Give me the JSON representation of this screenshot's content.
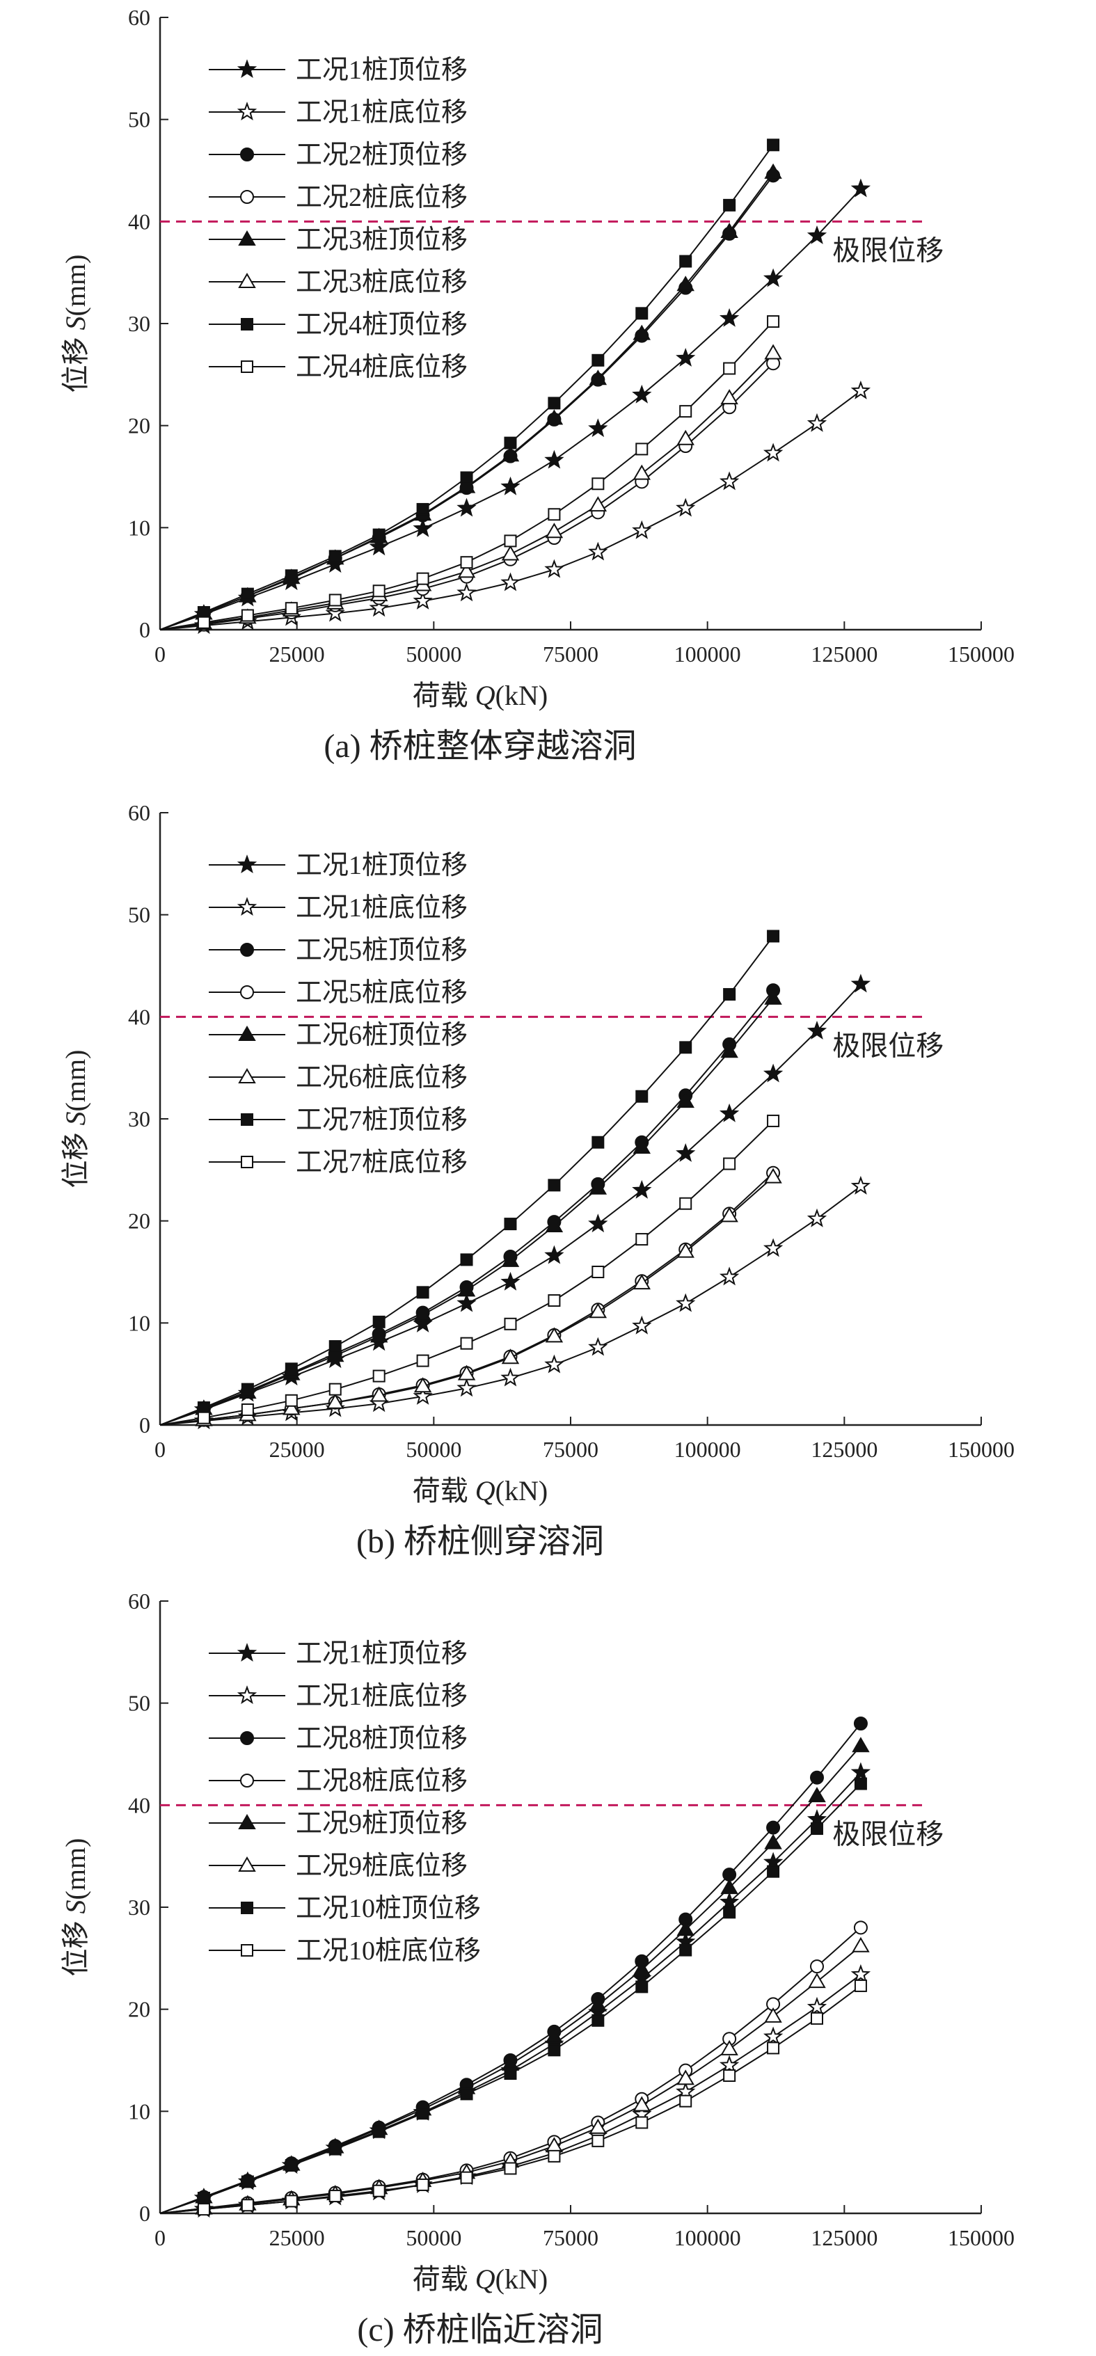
{
  "chart_data": [
    {
      "type": "line",
      "caption": "(a) 桥桩整体穿越溶洞",
      "xlabel_prefix": "荷载 ",
      "xlabel_var": "Q",
      "xlabel_suffix": "(kN)",
      "ylabel_prefix": "位移 ",
      "ylabel_var": "S",
      "ylabel_suffix": "(mm)",
      "xlim": [
        0,
        150000
      ],
      "ylim": [
        0,
        60
      ],
      "xticks": [
        "0",
        "25000",
        "50000",
        "75000",
        "100000",
        "125000",
        "150000"
      ],
      "yticks": [
        "0",
        "10",
        "20",
        "30",
        "40",
        "50",
        "60"
      ],
      "limit_line": {
        "y": 40,
        "label": "极限位移",
        "color": "#c2185b"
      },
      "series": [
        {
          "name": "工况1桩顶位移",
          "marker": "star-filled",
          "x": [
            0,
            8000,
            16000,
            24000,
            32000,
            40000,
            48000,
            56000,
            64000,
            72000,
            80000,
            88000,
            96000,
            104000,
            112000,
            120000,
            128000
          ],
          "y": [
            0,
            1.5,
            3.1,
            4.7,
            6.4,
            8.1,
            9.9,
            11.9,
            14.0,
            16.6,
            19.7,
            23.0,
            26.6,
            30.5,
            34.4,
            38.6,
            43.2
          ]
        },
        {
          "name": "工况1桩底位移",
          "marker": "star-open",
          "x": [
            0,
            8000,
            16000,
            24000,
            32000,
            40000,
            48000,
            56000,
            64000,
            72000,
            80000,
            88000,
            96000,
            104000,
            112000,
            120000,
            128000
          ],
          "y": [
            0,
            0.4,
            0.8,
            1.2,
            1.6,
            2.1,
            2.8,
            3.6,
            4.6,
            5.9,
            7.6,
            9.7,
            11.9,
            14.5,
            17.3,
            20.2,
            23.4
          ]
        },
        {
          "name": "工况2桩顶位移",
          "marker": "circle-filled",
          "x": [
            0,
            8000,
            16000,
            24000,
            32000,
            40000,
            48000,
            56000,
            64000,
            72000,
            80000,
            88000,
            96000,
            104000,
            112000
          ],
          "y": [
            0,
            1.6,
            3.3,
            5.0,
            7.0,
            9.0,
            11.2,
            13.9,
            17.0,
            20.6,
            24.5,
            28.8,
            33.5,
            38.8,
            44.5
          ]
        },
        {
          "name": "工况2桩底位移",
          "marker": "circle-open",
          "x": [
            0,
            8000,
            16000,
            24000,
            32000,
            40000,
            48000,
            56000,
            64000,
            72000,
            80000,
            88000,
            96000,
            104000,
            112000
          ],
          "y": [
            0,
            0.5,
            1.1,
            1.7,
            2.4,
            3.1,
            4.0,
            5.2,
            6.9,
            9.0,
            11.5,
            14.5,
            18.0,
            21.8,
            26.1
          ]
        },
        {
          "name": "工况3桩顶位移",
          "marker": "triangle-filled",
          "x": [
            0,
            8000,
            16000,
            24000,
            32000,
            40000,
            48000,
            56000,
            64000,
            72000,
            80000,
            88000,
            96000,
            104000,
            112000
          ],
          "y": [
            0,
            1.6,
            3.3,
            5.1,
            7.0,
            9.1,
            11.3,
            14.0,
            17.1,
            20.7,
            24.6,
            29.0,
            33.8,
            39.0,
            44.8
          ]
        },
        {
          "name": "工况3桩底位移",
          "marker": "triangle-open",
          "x": [
            0,
            8000,
            16000,
            24000,
            32000,
            40000,
            48000,
            56000,
            64000,
            72000,
            80000,
            88000,
            96000,
            104000,
            112000
          ],
          "y": [
            0,
            0.6,
            1.2,
            1.9,
            2.6,
            3.4,
            4.4,
            5.7,
            7.4,
            9.6,
            12.2,
            15.3,
            18.7,
            22.7,
            27.1
          ]
        },
        {
          "name": "工况4桩顶位移",
          "marker": "square-filled",
          "x": [
            0,
            8000,
            16000,
            24000,
            32000,
            40000,
            48000,
            56000,
            64000,
            72000,
            80000,
            88000,
            96000,
            104000,
            112000
          ],
          "y": [
            0,
            1.7,
            3.5,
            5.3,
            7.2,
            9.3,
            11.8,
            14.9,
            18.3,
            22.2,
            26.4,
            31.0,
            36.1,
            41.6,
            47.5
          ]
        },
        {
          "name": "工况4桩底位移",
          "marker": "square-open",
          "x": [
            0,
            8000,
            16000,
            24000,
            32000,
            40000,
            48000,
            56000,
            64000,
            72000,
            80000,
            88000,
            96000,
            104000,
            112000
          ],
          "y": [
            0,
            0.7,
            1.4,
            2.1,
            2.9,
            3.8,
            5.0,
            6.6,
            8.7,
            11.3,
            14.3,
            17.7,
            21.4,
            25.6,
            30.2
          ]
        }
      ]
    },
    {
      "type": "line",
      "caption": "(b) 桥桩侧穿溶洞",
      "xlabel_prefix": "荷载 ",
      "xlabel_var": "Q",
      "xlabel_suffix": "(kN)",
      "ylabel_prefix": "位移 ",
      "ylabel_var": "S",
      "ylabel_suffix": "(mm)",
      "xlim": [
        0,
        150000
      ],
      "ylim": [
        0,
        60
      ],
      "xticks": [
        "0",
        "25000",
        "50000",
        "75000",
        "100000",
        "125000",
        "150000"
      ],
      "yticks": [
        "0",
        "10",
        "20",
        "30",
        "40",
        "50",
        "60"
      ],
      "limit_line": {
        "y": 40,
        "label": "极限位移",
        "color": "#c2185b"
      },
      "series": [
        {
          "name": "工况1桩顶位移",
          "marker": "star-filled",
          "x": [
            0,
            8000,
            16000,
            24000,
            32000,
            40000,
            48000,
            56000,
            64000,
            72000,
            80000,
            88000,
            96000,
            104000,
            112000,
            120000,
            128000
          ],
          "y": [
            0,
            1.5,
            3.1,
            4.7,
            6.4,
            8.1,
            9.9,
            11.9,
            14.0,
            16.6,
            19.7,
            23.0,
            26.6,
            30.5,
            34.4,
            38.6,
            43.2
          ]
        },
        {
          "name": "工况1桩底位移",
          "marker": "star-open",
          "x": [
            0,
            8000,
            16000,
            24000,
            32000,
            40000,
            48000,
            56000,
            64000,
            72000,
            80000,
            88000,
            96000,
            104000,
            112000,
            120000,
            128000
          ],
          "y": [
            0,
            0.4,
            0.8,
            1.2,
            1.6,
            2.1,
            2.8,
            3.6,
            4.6,
            5.9,
            7.6,
            9.7,
            11.9,
            14.5,
            17.3,
            20.2,
            23.4
          ]
        },
        {
          "name": "工况5桩顶位移",
          "marker": "circle-filled",
          "x": [
            0,
            8000,
            16000,
            24000,
            32000,
            40000,
            48000,
            56000,
            64000,
            72000,
            80000,
            88000,
            96000,
            104000,
            112000
          ],
          "y": [
            0,
            1.6,
            3.3,
            5.1,
            7.0,
            8.9,
            11.0,
            13.5,
            16.5,
            19.9,
            23.6,
            27.7,
            32.3,
            37.3,
            42.6
          ]
        },
        {
          "name": "工况5桩底位移",
          "marker": "circle-open",
          "x": [
            0,
            8000,
            16000,
            24000,
            32000,
            40000,
            48000,
            56000,
            64000,
            72000,
            80000,
            88000,
            96000,
            104000,
            112000
          ],
          "y": [
            0,
            0.5,
            1.0,
            1.6,
            2.2,
            3.0,
            3.9,
            5.1,
            6.7,
            8.8,
            11.3,
            14.1,
            17.2,
            20.7,
            24.7
          ]
        },
        {
          "name": "工况6桩顶位移",
          "marker": "triangle-filled",
          "x": [
            0,
            8000,
            16000,
            24000,
            32000,
            40000,
            48000,
            56000,
            64000,
            72000,
            80000,
            88000,
            96000,
            104000,
            112000
          ],
          "y": [
            0,
            1.6,
            3.2,
            5.0,
            6.8,
            8.7,
            10.8,
            13.2,
            16.1,
            19.5,
            23.2,
            27.2,
            31.7,
            36.6,
            41.8
          ]
        },
        {
          "name": "工况6桩底位移",
          "marker": "triangle-open",
          "x": [
            0,
            8000,
            16000,
            24000,
            32000,
            40000,
            48000,
            56000,
            64000,
            72000,
            80000,
            88000,
            96000,
            104000,
            112000
          ],
          "y": [
            0,
            0.5,
            1.0,
            1.6,
            2.2,
            2.9,
            3.8,
            5.0,
            6.6,
            8.7,
            11.1,
            13.9,
            17.0,
            20.5,
            24.3
          ]
        },
        {
          "name": "工况7桩顶位移",
          "marker": "square-filled",
          "x": [
            0,
            8000,
            16000,
            24000,
            32000,
            40000,
            48000,
            56000,
            64000,
            72000,
            80000,
            88000,
            96000,
            104000,
            112000
          ],
          "y": [
            0,
            1.7,
            3.5,
            5.5,
            7.7,
            10.1,
            13.0,
            16.2,
            19.7,
            23.5,
            27.7,
            32.2,
            37.0,
            42.2,
            47.9
          ]
        },
        {
          "name": "工况7桩底位移",
          "marker": "square-open",
          "x": [
            0,
            8000,
            16000,
            24000,
            32000,
            40000,
            48000,
            56000,
            64000,
            72000,
            80000,
            88000,
            96000,
            104000,
            112000
          ],
          "y": [
            0,
            0.7,
            1.5,
            2.4,
            3.5,
            4.8,
            6.3,
            8.0,
            9.9,
            12.2,
            15.0,
            18.2,
            21.7,
            25.6,
            29.8
          ]
        }
      ]
    },
    {
      "type": "line",
      "caption": "(c) 桥桩临近溶洞",
      "xlabel_prefix": "荷载 ",
      "xlabel_var": "Q",
      "xlabel_suffix": "(kN)",
      "ylabel_prefix": "位移 ",
      "ylabel_var": "S",
      "ylabel_suffix": "(mm)",
      "xlim": [
        0,
        150000
      ],
      "ylim": [
        0,
        60
      ],
      "xticks": [
        "0",
        "25000",
        "50000",
        "75000",
        "100000",
        "125000",
        "150000"
      ],
      "yticks": [
        "0",
        "10",
        "20",
        "30",
        "40",
        "50",
        "60"
      ],
      "limit_line": {
        "y": 40,
        "label": "极限位移",
        "color": "#c2185b"
      },
      "series": [
        {
          "name": "工况1桩顶位移",
          "marker": "star-filled",
          "x": [
            0,
            8000,
            16000,
            24000,
            32000,
            40000,
            48000,
            56000,
            64000,
            72000,
            80000,
            88000,
            96000,
            104000,
            112000,
            120000,
            128000
          ],
          "y": [
            0,
            1.5,
            3.1,
            4.7,
            6.4,
            8.1,
            9.9,
            11.9,
            14.0,
            16.6,
            19.7,
            23.0,
            26.6,
            30.5,
            34.4,
            38.6,
            43.2
          ]
        },
        {
          "name": "工况1桩底位移",
          "marker": "star-open",
          "x": [
            0,
            8000,
            16000,
            24000,
            32000,
            40000,
            48000,
            56000,
            64000,
            72000,
            80000,
            88000,
            96000,
            104000,
            112000,
            120000,
            128000
          ],
          "y": [
            0,
            0.4,
            0.8,
            1.2,
            1.6,
            2.1,
            2.8,
            3.6,
            4.6,
            5.9,
            7.6,
            9.7,
            11.9,
            14.5,
            17.3,
            20.2,
            23.4
          ]
        },
        {
          "name": "工况8桩顶位移",
          "marker": "circle-filled",
          "x": [
            0,
            8000,
            16000,
            24000,
            32000,
            40000,
            48000,
            56000,
            64000,
            72000,
            80000,
            88000,
            96000,
            104000,
            112000,
            120000,
            128000
          ],
          "y": [
            0,
            1.6,
            3.2,
            4.9,
            6.6,
            8.4,
            10.4,
            12.6,
            15.0,
            17.8,
            21.0,
            24.7,
            28.8,
            33.2,
            37.8,
            42.7,
            48.0
          ]
        },
        {
          "name": "工况8桩底位移",
          "marker": "circle-open",
          "x": [
            0,
            8000,
            16000,
            24000,
            32000,
            40000,
            48000,
            56000,
            64000,
            72000,
            80000,
            88000,
            96000,
            104000,
            112000,
            120000,
            128000
          ],
          "y": [
            0,
            0.5,
            1.0,
            1.5,
            2.0,
            2.6,
            3.3,
            4.2,
            5.4,
            7.0,
            8.9,
            11.2,
            14.0,
            17.1,
            20.5,
            24.2,
            28.0
          ]
        },
        {
          "name": "工况9桩顶位移",
          "marker": "triangle-filled",
          "x": [
            0,
            8000,
            16000,
            24000,
            32000,
            40000,
            48000,
            56000,
            64000,
            72000,
            80000,
            88000,
            96000,
            104000,
            112000,
            120000,
            128000
          ],
          "y": [
            0,
            1.6,
            3.2,
            4.8,
            6.5,
            8.3,
            10.2,
            12.3,
            14.6,
            17.3,
            20.4,
            23.9,
            27.8,
            31.9,
            36.3,
            40.9,
            45.8
          ]
        },
        {
          "name": "工况9桩底位移",
          "marker": "triangle-open",
          "x": [
            0,
            8000,
            16000,
            24000,
            32000,
            40000,
            48000,
            56000,
            64000,
            72000,
            80000,
            88000,
            96000,
            104000,
            112000,
            120000,
            128000
          ],
          "y": [
            0,
            0.5,
            0.9,
            1.4,
            1.9,
            2.5,
            3.2,
            4.0,
            5.1,
            6.6,
            8.4,
            10.6,
            13.2,
            16.1,
            19.3,
            22.7,
            26.2
          ]
        },
        {
          "name": "工况10桩顶位移",
          "marker": "square-filled",
          "x": [
            0,
            8000,
            16000,
            24000,
            32000,
            40000,
            48000,
            56000,
            64000,
            72000,
            80000,
            88000,
            96000,
            104000,
            112000,
            120000,
            128000
          ],
          "y": [
            0,
            1.5,
            3.1,
            4.7,
            6.3,
            8.0,
            9.8,
            11.7,
            13.7,
            16.0,
            18.9,
            22.2,
            25.8,
            29.5,
            33.5,
            37.7,
            42.1
          ]
        },
        {
          "name": "工况10桩底位移",
          "marker": "square-open",
          "x": [
            0,
            8000,
            16000,
            24000,
            32000,
            40000,
            48000,
            56000,
            64000,
            72000,
            80000,
            88000,
            96000,
            104000,
            112000,
            120000,
            128000
          ],
          "y": [
            0,
            0.4,
            0.8,
            1.2,
            1.7,
            2.2,
            2.8,
            3.5,
            4.4,
            5.6,
            7.1,
            8.9,
            11.0,
            13.5,
            16.2,
            19.1,
            22.3
          ]
        }
      ]
    }
  ]
}
